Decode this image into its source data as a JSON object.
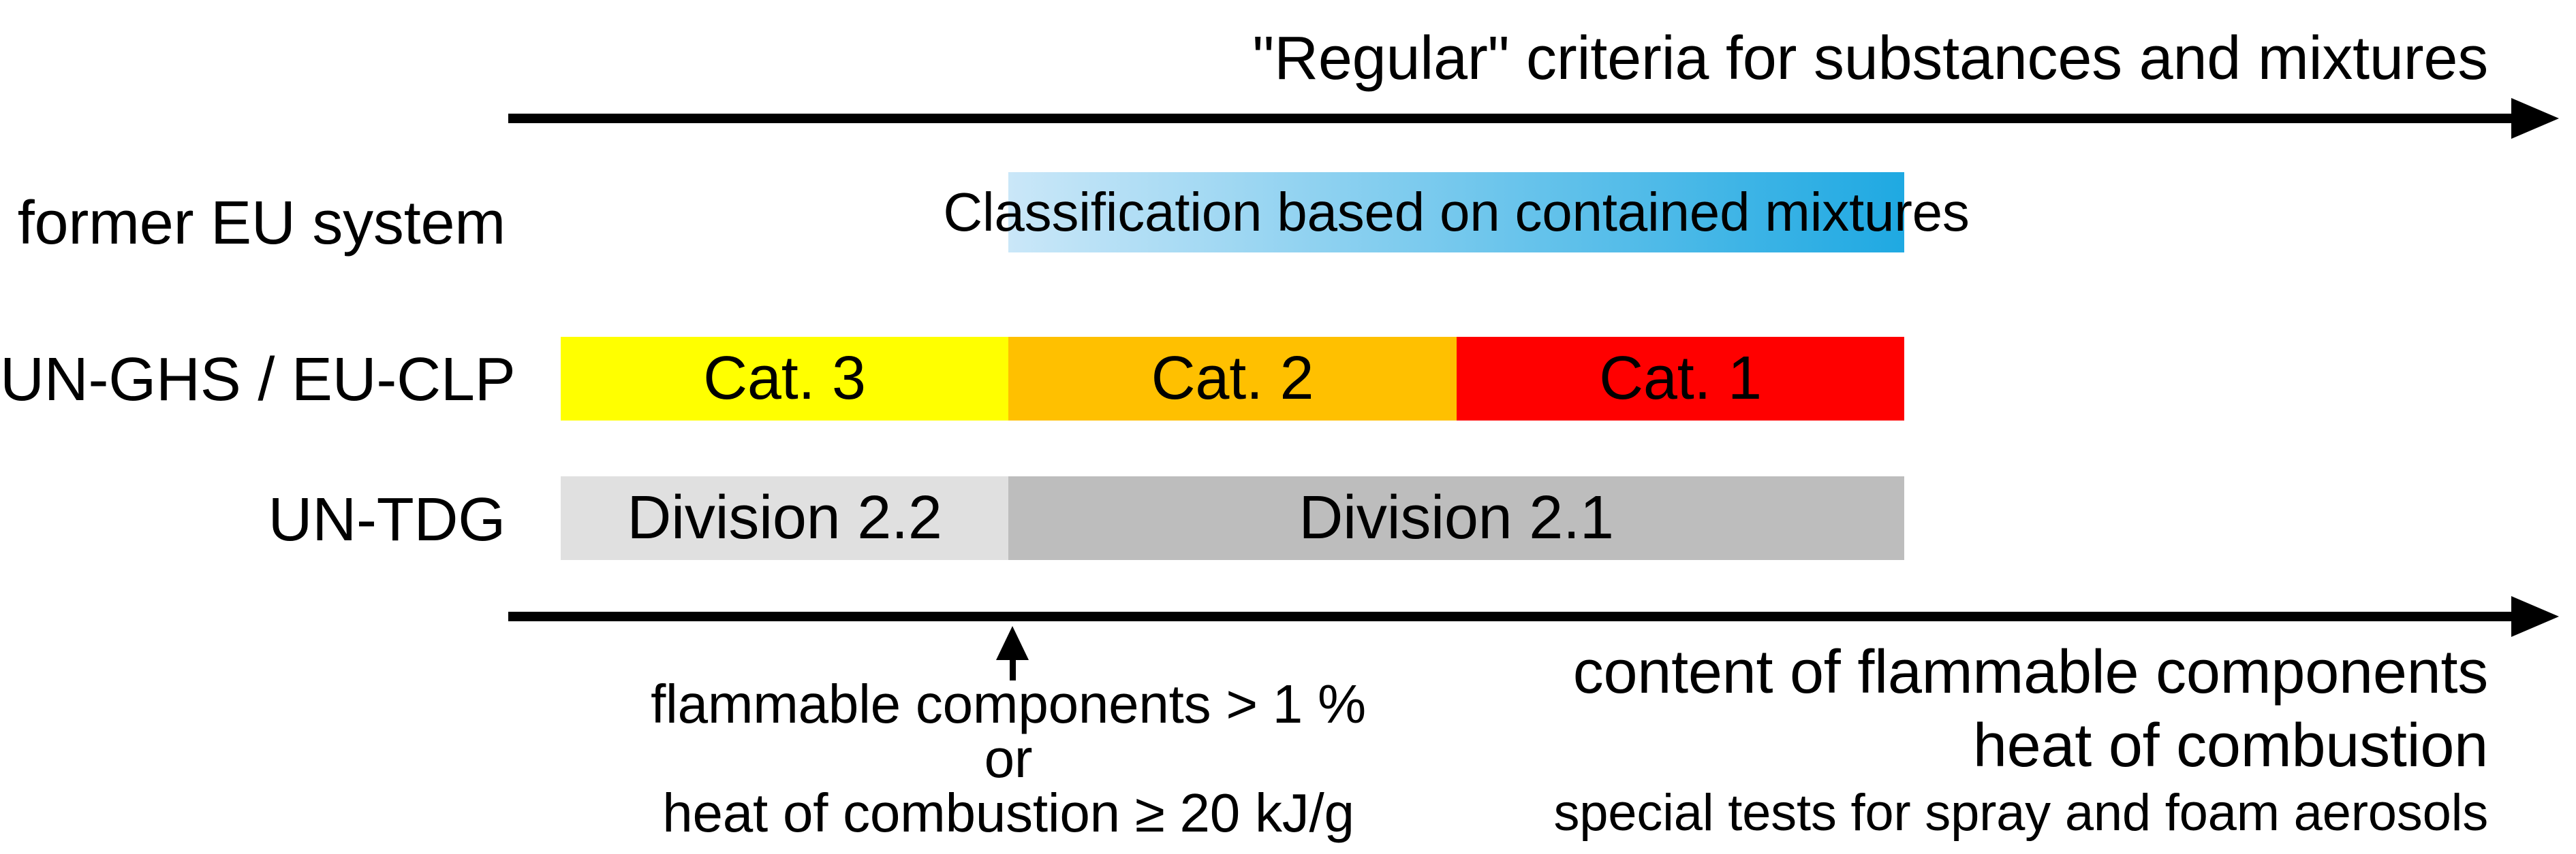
{
  "top_axis": {
    "title": "\"Regular\" criteria for substances and mixtures"
  },
  "rows": {
    "former_eu": {
      "label": "former EU system",
      "box_label": "Classification based on contained mixtures"
    },
    "ghs_clp": {
      "label": "UN-GHS / EU-CLP",
      "categories": [
        {
          "label": "Cat. 3",
          "color": "#FFFF00"
        },
        {
          "label": "Cat. 2",
          "color": "#FFC000"
        },
        {
          "label": "Cat. 1",
          "color": "#FF0000"
        }
      ]
    },
    "un_tdg": {
      "label": "UN-TDG",
      "divisions": [
        {
          "label": "Division 2.2",
          "color": "#E0E0E0"
        },
        {
          "label": "Division 2.1",
          "color": "#BDBDBD"
        }
      ]
    }
  },
  "threshold_note": {
    "lines": [
      "flammable components > 1 %",
      "or",
      "heat of combustion ≥ 20 kJ/g"
    ]
  },
  "bottom_axis": {
    "lines": [
      "content of flammable components",
      "heat of combustion",
      "special tests for spray and foam aerosols"
    ]
  },
  "colors": {
    "axis_arrow": "#000000",
    "classification_gradient": {
      "left": "#CAE7F8",
      "right": "#1FA9E2"
    },
    "text": "#000000"
  }
}
